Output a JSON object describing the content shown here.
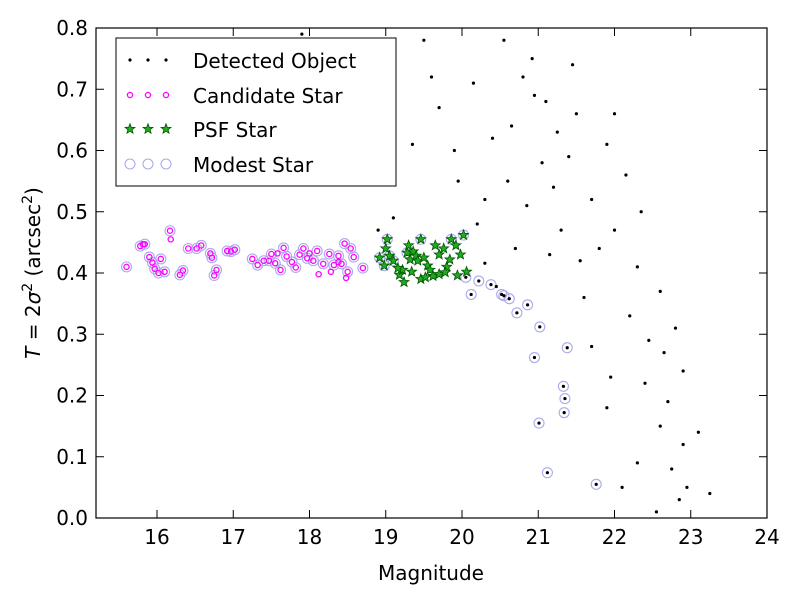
{
  "chart_data": {
    "type": "scatter",
    "xlabel": "Magnitude",
    "ylabel_parts": [
      "T",
      " = 2",
      "σ",
      "2",
      " (arcsec",
      "2",
      ")"
    ],
    "xlim": [
      15.2,
      24
    ],
    "ylim": [
      0.0,
      0.8
    ],
    "xticks": [
      "16",
      "17",
      "18",
      "19",
      "20",
      "21",
      "22",
      "23",
      "24"
    ],
    "yticks": [
      "0.0",
      "0.1",
      "0.2",
      "0.3",
      "0.4",
      "0.5",
      "0.6",
      "0.7",
      "0.8"
    ],
    "grid": false,
    "legend_position": "top-left",
    "colors": {
      "detected": "#000000",
      "candidate": "#ff00ff",
      "psf_fill": "#22aa22",
      "psf_edge": "#005500",
      "modest": "#aaaaee"
    },
    "series": [
      {
        "key": "detected",
        "name": "Detected Object",
        "marker": "dot",
        "points": [
          [
            20.05,
            0.393
          ],
          [
            20.22,
            0.387
          ],
          [
            20.38,
            0.381
          ],
          [
            20.52,
            0.365
          ],
          [
            20.62,
            0.358
          ],
          [
            20.72,
            0.335
          ],
          [
            20.86,
            0.348
          ],
          [
            20.95,
            0.262
          ],
          [
            21.01,
            0.155
          ],
          [
            21.12,
            0.074
          ],
          [
            21.33,
            0.215
          ],
          [
            21.35,
            0.195
          ],
          [
            21.34,
            0.172
          ],
          [
            21.38,
            0.278
          ],
          [
            21.76,
            0.055
          ],
          [
            21.02,
            0.312
          ],
          [
            20.12,
            0.365
          ],
          [
            20.55,
            0.363
          ],
          [
            20.3,
            0.416
          ],
          [
            20.45,
            0.378
          ],
          [
            20.4,
            0.62
          ],
          [
            20.55,
            0.78
          ],
          [
            20.15,
            0.71
          ],
          [
            20.92,
            0.75
          ],
          [
            21.1,
            0.68
          ],
          [
            21.4,
            0.59
          ],
          [
            21.7,
            0.52
          ],
          [
            22.0,
            0.47
          ],
          [
            22.3,
            0.41
          ],
          [
            21.5,
            0.66
          ],
          [
            21.2,
            0.54
          ],
          [
            21.9,
            0.61
          ],
          [
            22.2,
            0.33
          ],
          [
            22.4,
            0.22
          ],
          [
            22.6,
            0.15
          ],
          [
            22.75,
            0.08
          ],
          [
            22.9,
            0.12
          ],
          [
            22.45,
            0.29
          ],
          [
            21.8,
            0.44
          ],
          [
            21.6,
            0.36
          ],
          [
            21.3,
            0.47
          ],
          [
            21.05,
            0.58
          ],
          [
            20.8,
            0.72
          ],
          [
            20.65,
            0.64
          ],
          [
            20.3,
            0.52
          ],
          [
            19.9,
            0.6
          ],
          [
            19.7,
            0.67
          ],
          [
            19.6,
            0.72
          ],
          [
            19.35,
            0.61
          ],
          [
            19.5,
            0.78
          ],
          [
            18.9,
            0.47
          ],
          [
            19.1,
            0.49
          ],
          [
            18.35,
            0.72
          ],
          [
            18.05,
            0.78
          ],
          [
            17.9,
            0.79
          ],
          [
            19.95,
            0.55
          ],
          [
            20.2,
            0.48
          ],
          [
            20.7,
            0.44
          ],
          [
            21.9,
            0.18
          ],
          [
            22.1,
            0.05
          ],
          [
            22.85,
            0.03
          ],
          [
            23.1,
            0.14
          ],
          [
            23.25,
            0.04
          ],
          [
            22.55,
            0.01
          ],
          [
            21.7,
            0.28
          ],
          [
            22.7,
            0.19
          ],
          [
            22.95,
            0.05
          ],
          [
            22.3,
            0.09
          ],
          [
            21.95,
            0.23
          ],
          [
            22.6,
            0.37
          ],
          [
            22.8,
            0.31
          ],
          [
            22.15,
            0.56
          ],
          [
            22.35,
            0.5
          ],
          [
            22.0,
            0.66
          ],
          [
            21.45,
            0.74
          ],
          [
            21.25,
            0.63
          ],
          [
            20.95,
            0.69
          ],
          [
            20.6,
            0.55
          ],
          [
            20.85,
            0.51
          ],
          [
            21.55,
            0.42
          ],
          [
            21.15,
            0.43
          ],
          [
            22.9,
            0.24
          ],
          [
            22.65,
            0.27
          ]
        ]
      },
      {
        "key": "candidate",
        "name": "Candidate Star",
        "marker": "small-circle",
        "points": [
          [
            15.6,
            0.41
          ],
          [
            15.78,
            0.444
          ],
          [
            15.84,
            0.447
          ],
          [
            15.9,
            0.426
          ],
          [
            15.94,
            0.417
          ],
          [
            15.97,
            0.407
          ],
          [
            16.02,
            0.4
          ],
          [
            16.05,
            0.423
          ],
          [
            16.1,
            0.402
          ],
          [
            16.17,
            0.469
          ],
          [
            16.3,
            0.397
          ],
          [
            16.34,
            0.404
          ],
          [
            16.41,
            0.44
          ],
          [
            16.52,
            0.44
          ],
          [
            16.58,
            0.445
          ],
          [
            16.7,
            0.432
          ],
          [
            16.72,
            0.425
          ],
          [
            16.78,
            0.405
          ],
          [
            16.75,
            0.396
          ],
          [
            16.92,
            0.436
          ],
          [
            16.97,
            0.435
          ],
          [
            17.02,
            0.438
          ],
          [
            17.25,
            0.423
          ],
          [
            17.32,
            0.413
          ],
          [
            17.4,
            0.42
          ],
          [
            17.47,
            0.42
          ],
          [
            17.5,
            0.431
          ],
          [
            17.55,
            0.416
          ],
          [
            17.62,
            0.405
          ],
          [
            17.66,
            0.441
          ],
          [
            17.7,
            0.427
          ],
          [
            17.77,
            0.418
          ],
          [
            17.82,
            0.409
          ],
          [
            17.87,
            0.43
          ],
          [
            17.92,
            0.44
          ],
          [
            17.97,
            0.424
          ],
          [
            18.05,
            0.42
          ],
          [
            18.1,
            0.436
          ],
          [
            18.18,
            0.415
          ],
          [
            18.26,
            0.431
          ],
          [
            18.32,
            0.413
          ],
          [
            18.38,
            0.428
          ],
          [
            18.42,
            0.415
          ],
          [
            18.46,
            0.448
          ],
          [
            18.5,
            0.402
          ],
          [
            18.54,
            0.44
          ],
          [
            18.58,
            0.426
          ],
          [
            18.7,
            0.408
          ],
          [
            18.38,
            0.418
          ],
          [
            18.28,
            0.402
          ],
          [
            18.48,
            0.392
          ],
          [
            18.12,
            0.398
          ],
          [
            18.0,
            0.432
          ],
          [
            17.58,
            0.432
          ],
          [
            16.18,
            0.455
          ],
          [
            15.82,
            0.447
          ]
        ]
      },
      {
        "key": "psf",
        "name": "PSF Star",
        "marker": "star",
        "points": [
          [
            18.92,
            0.425
          ],
          [
            18.98,
            0.412
          ],
          [
            19.02,
            0.455
          ],
          [
            19.05,
            0.428
          ],
          [
            19.1,
            0.42
          ],
          [
            19.18,
            0.397
          ],
          [
            19.22,
            0.405
          ],
          [
            19.28,
            0.433
          ],
          [
            19.32,
            0.422
          ],
          [
            19.36,
            0.435
          ],
          [
            19.4,
            0.428
          ],
          [
            19.42,
            0.42
          ],
          [
            19.46,
            0.455
          ],
          [
            19.5,
            0.425
          ],
          [
            19.55,
            0.412
          ],
          [
            19.58,
            0.405
          ],
          [
            19.62,
            0.395
          ],
          [
            19.65,
            0.445
          ],
          [
            19.7,
            0.43
          ],
          [
            19.76,
            0.44
          ],
          [
            19.8,
            0.41
          ],
          [
            19.84,
            0.422
          ],
          [
            19.86,
            0.455
          ],
          [
            19.92,
            0.445
          ],
          [
            19.98,
            0.43
          ],
          [
            20.02,
            0.462
          ],
          [
            20.06,
            0.402
          ],
          [
            19.34,
            0.402
          ],
          [
            19.16,
            0.408
          ],
          [
            19.7,
            0.398
          ],
          [
            19.46,
            0.39
          ],
          [
            19.0,
            0.44
          ],
          [
            19.52,
            0.393
          ],
          [
            19.94,
            0.396
          ],
          [
            19.3,
            0.445
          ],
          [
            19.24,
            0.385
          ],
          [
            19.78,
            0.401
          ]
        ]
      },
      {
        "key": "modest",
        "name": "Modest Star",
        "marker": "hollow-circle",
        "points": [
          [
            15.6,
            0.41
          ],
          [
            15.78,
            0.444
          ],
          [
            15.84,
            0.447
          ],
          [
            15.9,
            0.426
          ],
          [
            15.94,
            0.417
          ],
          [
            15.97,
            0.407
          ],
          [
            16.02,
            0.4
          ],
          [
            16.05,
            0.423
          ],
          [
            16.1,
            0.402
          ],
          [
            16.17,
            0.469
          ],
          [
            16.3,
            0.397
          ],
          [
            16.34,
            0.404
          ],
          [
            16.41,
            0.44
          ],
          [
            16.52,
            0.44
          ],
          [
            16.58,
            0.445
          ],
          [
            16.7,
            0.432
          ],
          [
            16.72,
            0.425
          ],
          [
            16.78,
            0.405
          ],
          [
            16.75,
            0.396
          ],
          [
            16.92,
            0.436
          ],
          [
            16.97,
            0.435
          ],
          [
            17.02,
            0.438
          ],
          [
            17.25,
            0.423
          ],
          [
            17.32,
            0.413
          ],
          [
            17.4,
            0.42
          ],
          [
            17.47,
            0.42
          ],
          [
            17.5,
            0.431
          ],
          [
            17.55,
            0.416
          ],
          [
            17.62,
            0.405
          ],
          [
            17.66,
            0.441
          ],
          [
            17.7,
            0.427
          ],
          [
            17.77,
            0.418
          ],
          [
            17.82,
            0.409
          ],
          [
            17.87,
            0.43
          ],
          [
            17.92,
            0.44
          ],
          [
            17.97,
            0.424
          ],
          [
            18.05,
            0.42
          ],
          [
            18.1,
            0.436
          ],
          [
            18.18,
            0.415
          ],
          [
            18.26,
            0.431
          ],
          [
            18.32,
            0.413
          ],
          [
            18.38,
            0.428
          ],
          [
            18.42,
            0.415
          ],
          [
            18.46,
            0.448
          ],
          [
            18.5,
            0.402
          ],
          [
            18.54,
            0.44
          ],
          [
            18.58,
            0.426
          ],
          [
            18.7,
            0.408
          ],
          [
            18.92,
            0.425
          ],
          [
            18.98,
            0.412
          ],
          [
            19.02,
            0.455
          ],
          [
            19.05,
            0.428
          ],
          [
            19.1,
            0.42
          ],
          [
            19.28,
            0.433
          ],
          [
            19.46,
            0.455
          ],
          [
            19.86,
            0.455
          ],
          [
            20.02,
            0.462
          ],
          [
            20.05,
            0.393
          ],
          [
            20.22,
            0.387
          ],
          [
            20.38,
            0.381
          ],
          [
            20.52,
            0.365
          ],
          [
            20.62,
            0.358
          ],
          [
            20.72,
            0.335
          ],
          [
            20.86,
            0.348
          ],
          [
            20.95,
            0.262
          ],
          [
            21.01,
            0.155
          ],
          [
            21.12,
            0.074
          ],
          [
            21.33,
            0.215
          ],
          [
            21.35,
            0.195
          ],
          [
            21.34,
            0.172
          ],
          [
            21.38,
            0.278
          ],
          [
            21.76,
            0.055
          ],
          [
            21.02,
            0.312
          ],
          [
            20.12,
            0.365
          ],
          [
            20.55,
            0.363
          ]
        ]
      }
    ]
  }
}
